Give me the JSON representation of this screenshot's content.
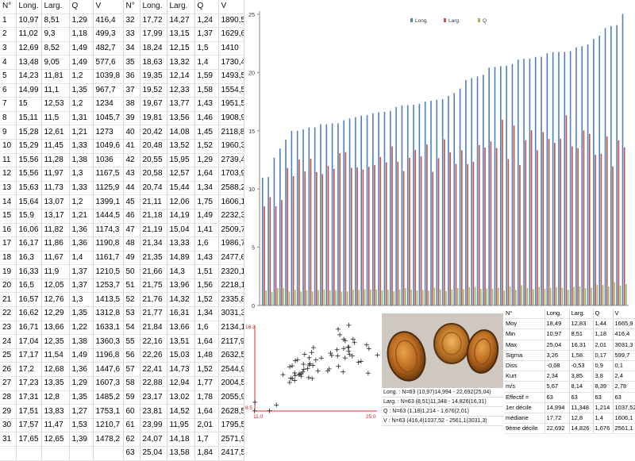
{
  "table": {
    "headers": [
      "N°",
      "Long.",
      "Larg.",
      "Q",
      "V",
      "N°",
      "Long.",
      "Larg.",
      "Q",
      "V"
    ],
    "rows": [
      [
        "1",
        "10,97",
        "8,51",
        "1,29",
        "416,4",
        "32",
        "17,72",
        "14,27",
        "1,24",
        "1890,5"
      ],
      [
        "2",
        "11,02",
        "9,3",
        "1,18",
        "499,3",
        "33",
        "17,99",
        "13,15",
        "1,37",
        "1629,6"
      ],
      [
        "3",
        "12,69",
        "8,52",
        "1,49",
        "482,7",
        "34",
        "18,24",
        "12,15",
        "1,5",
        "1410"
      ],
      [
        "4",
        "13,48",
        "9,05",
        "1,49",
        "577,6",
        "35",
        "18,63",
        "13,32",
        "1,4",
        "1730,4"
      ],
      [
        "5",
        "14,23",
        "11,81",
        "1,2",
        "1039,8",
        "36",
        "19,35",
        "12,14",
        "1,59",
        "1493,5"
      ],
      [
        "6",
        "14,99",
        "11,1",
        "1,35",
        "967,7",
        "37",
        "19,52",
        "12,33",
        "1,58",
        "1554,5"
      ],
      [
        "7",
        "15",
        "12,53",
        "1,2",
        "1234",
        "38",
        "19,67",
        "13,77",
        "1,43",
        "1951,5"
      ],
      [
        "8",
        "15,11",
        "11,5",
        "1,31",
        "1045,7",
        "39",
        "19,81",
        "13,56",
        "1,46",
        "1908,9"
      ],
      [
        "9",
        "15,28",
        "12,61",
        "1,21",
        "1273",
        "40",
        "20,42",
        "14,08",
        "1,45",
        "2118,8"
      ],
      [
        "10",
        "15,29",
        "11,45",
        "1,33",
        "1049,6",
        "41",
        "20,48",
        "13,52",
        "1,52",
        "1960,3"
      ],
      [
        "11",
        "15,56",
        "11,28",
        "1,38",
        "1036",
        "42",
        "20,55",
        "15,95",
        "1,29",
        "2739,4"
      ],
      [
        "12",
        "15,56",
        "11,97",
        "1,3",
        "1167,5",
        "43",
        "20,58",
        "12,57",
        "1,64",
        "1703,9"
      ],
      [
        "13",
        "15,63",
        "11,73",
        "1,33",
        "1125,9",
        "44",
        "20,74",
        "15,44",
        "1,34",
        "2588,2"
      ],
      [
        "14",
        "15,64",
        "13,07",
        "1,2",
        "1399,1",
        "45",
        "21,11",
        "12,06",
        "1,75",
        "1606,1"
      ],
      [
        "15",
        "15,9",
        "13,17",
        "1,21",
        "1444,5",
        "46",
        "21,18",
        "14,19",
        "1,49",
        "2232,3"
      ],
      [
        "16",
        "16,06",
        "11,82",
        "1,36",
        "1174,3",
        "47",
        "21,19",
        "15,04",
        "1,41",
        "2509,7"
      ],
      [
        "17",
        "16,17",
        "11,86",
        "1,36",
        "1190,8",
        "48",
        "21,34",
        "13,33",
        "1,6",
        "1986,7"
      ],
      [
        "18",
        "16,3",
        "11,67",
        "1,4",
        "1161,7",
        "49",
        "21,35",
        "14,89",
        "1,43",
        "2477,6"
      ],
      [
        "19",
        "16,33",
        "11,9",
        "1,37",
        "1210,5",
        "50",
        "21,66",
        "14,3",
        "1,51",
        "2320,1"
      ],
      [
        "20",
        "16,5",
        "12,05",
        "1,37",
        "1253,7",
        "51",
        "21,75",
        "13,96",
        "1,56",
        "2218,1"
      ],
      [
        "21",
        "16,57",
        "12,76",
        "1,3",
        "1413,5",
        "52",
        "21,76",
        "14,32",
        "1,52",
        "2335,8"
      ],
      [
        "22",
        "16,62",
        "12,29",
        "1,35",
        "1312,8",
        "53",
        "21,77",
        "16,31",
        "1,34",
        "3031,3"
      ],
      [
        "23",
        "16,71",
        "13,66",
        "1,22",
        "1633,1",
        "54",
        "21,84",
        "13,66",
        "1,6",
        "2134,1"
      ],
      [
        "24",
        "17,04",
        "12,35",
        "1,38",
        "1360,3",
        "55",
        "22,16",
        "13,51",
        "1,64",
        "2117,9"
      ],
      [
        "25",
        "17,17",
        "11,54",
        "1,49",
        "1196,8",
        "56",
        "22,26",
        "15,03",
        "1,48",
        "2632,5"
      ],
      [
        "26",
        "17,2",
        "12,68",
        "1,36",
        "1447,6",
        "57",
        "22,41",
        "14,73",
        "1,52",
        "2544,9"
      ],
      [
        "27",
        "17,23",
        "13,35",
        "1,29",
        "1607,3",
        "58",
        "22,88",
        "12,94",
        "1,77",
        "2004,5"
      ],
      [
        "28",
        "17,31",
        "12,8",
        "1,35",
        "1485,2",
        "59",
        "23,17",
        "13,02",
        "1,78",
        "2055,9"
      ],
      [
        "29",
        "17,51",
        "13,83",
        "1,27",
        "1753,1",
        "60",
        "23,81",
        "14,52",
        "1,64",
        "2628,5"
      ],
      [
        "30",
        "17,57",
        "11,47",
        "1,53",
        "1210,7",
        "61",
        "23,99",
        "11,95",
        "2,01",
        "1795,5"
      ],
      [
        "31",
        "17,65",
        "12,65",
        "1,39",
        "1478,2",
        "62",
        "24,07",
        "14,18",
        "1,7",
        "2571,9"
      ],
      [
        "",
        "",
        "",
        "",
        "",
        "63",
        "25,04",
        "13,58",
        "1,84",
        "2417,5"
      ]
    ]
  },
  "chart_data": [
    {
      "type": "bar",
      "legend": [
        "Long.",
        "Larg.",
        "Q"
      ],
      "legend_position": "top",
      "colors": [
        "#4f81bd",
        "#c0504d",
        "#9bbb59"
      ],
      "ylim": [
        0,
        25
      ],
      "yticks": [
        "0",
        "5",
        "10",
        "15",
        "20",
        "25"
      ],
      "grid": false,
      "series": [
        {
          "name": "Long.",
          "values": [
            10.97,
            11.02,
            12.69,
            13.48,
            14.23,
            14.99,
            15,
            15.11,
            15.28,
            15.29,
            15.56,
            15.56,
            15.63,
            15.64,
            15.9,
            16.06,
            16.17,
            16.3,
            16.33,
            16.5,
            16.57,
            16.62,
            16.71,
            17.04,
            17.17,
            17.2,
            17.23,
            17.31,
            17.51,
            17.57,
            17.65,
            17.72,
            17.99,
            18.24,
            18.63,
            19.35,
            19.52,
            19.67,
            19.81,
            20.42,
            20.48,
            20.55,
            20.58,
            20.74,
            21.11,
            21.18,
            21.19,
            21.34,
            21.35,
            21.66,
            21.75,
            21.76,
            21.77,
            21.84,
            22.16,
            22.26,
            22.41,
            22.88,
            23.17,
            23.81,
            23.99,
            24.07,
            25.04
          ]
        },
        {
          "name": "Larg.",
          "values": [
            8.51,
            9.3,
            8.52,
            9.05,
            11.81,
            11.1,
            12.53,
            11.5,
            12.61,
            11.45,
            11.28,
            11.97,
            11.73,
            13.07,
            13.17,
            11.82,
            11.86,
            11.67,
            11.9,
            12.05,
            12.76,
            12.29,
            13.66,
            12.35,
            11.54,
            12.68,
            13.35,
            12.8,
            13.83,
            11.47,
            12.65,
            14.27,
            13.15,
            12.15,
            13.32,
            12.14,
            12.33,
            13.77,
            13.56,
            14.08,
            13.52,
            15.95,
            12.57,
            15.44,
            12.06,
            14.19,
            15.04,
            13.33,
            14.89,
            14.3,
            13.96,
            14.32,
            16.31,
            13.66,
            13.51,
            15.03,
            14.73,
            12.94,
            13.02,
            14.52,
            11.95,
            14.18,
            13.58
          ]
        },
        {
          "name": "Q",
          "values": [
            1.29,
            1.18,
            1.49,
            1.49,
            1.2,
            1.35,
            1.2,
            1.31,
            1.21,
            1.33,
            1.38,
            1.3,
            1.33,
            1.2,
            1.21,
            1.36,
            1.36,
            1.4,
            1.37,
            1.37,
            1.3,
            1.35,
            1.22,
            1.38,
            1.49,
            1.36,
            1.29,
            1.35,
            1.27,
            1.53,
            1.39,
            1.24,
            1.37,
            1.5,
            1.4,
            1.59,
            1.58,
            1.43,
            1.46,
            1.45,
            1.52,
            1.29,
            1.64,
            1.34,
            1.75,
            1.49,
            1.41,
            1.6,
            1.43,
            1.51,
            1.56,
            1.52,
            1.34,
            1.6,
            1.64,
            1.48,
            1.52,
            1.77,
            1.78,
            1.64,
            2.01,
            1.7,
            1.84
          ]
        }
      ]
    },
    {
      "type": "scatter",
      "marker": "+",
      "xlim": [
        11.0,
        25.0
      ],
      "ylim": [
        8.5,
        16.3
      ],
      "x_min_label": "11.0",
      "x_max_label": "25.0",
      "y_min_label": "8.5",
      "y_max_label": "16.3",
      "x_source": "Long.",
      "y_source": "Larg."
    }
  ],
  "photo": {
    "alt_icon": "pollen-grains-photo",
    "info": [
      "Long. : N=63    (10,97)14,994 - 22,692(25,04)",
      "Larg. : N=63    (8,51)11,348 - 14,826(16,31)",
      "Q : N=63    (1,18)1,214 - 1,676(2,01)",
      "V : N=63    (416,4)1037,52 - 2561,1(3031,3)"
    ]
  },
  "stats": {
    "headers": [
      "N°",
      "Long.",
      "Larg.",
      "Q",
      "V"
    ],
    "rows": [
      [
        "Moy",
        "18,49",
        "12,83",
        "1,44",
        "1665,9"
      ],
      [
        "Min",
        "10,97",
        "8,51",
        "1,18",
        "416,4"
      ],
      [
        "Max",
        "25,04",
        "16,31",
        "2,01",
        "3031,3"
      ],
      [
        "Sigma",
        "3,26",
        "1,58",
        "0,17",
        "599,7"
      ],
      [
        "Diss",
        "-0,08",
        "-0,53",
        "0,9",
        "0,1"
      ],
      [
        "Kurt",
        "2,34",
        "3,85",
        "3,8",
        "2,4"
      ],
      [
        "m/s",
        "5,67",
        "8,14",
        "8,39",
        "2,78"
      ],
      [
        "Effectif =",
        "63",
        "63",
        "63",
        "63"
      ],
      [
        "1er décile",
        "14,994",
        "11,348",
        "1,214",
        "1037,52"
      ],
      [
        "médiane",
        "17,72",
        "12,8",
        "1,4",
        "1606,1"
      ],
      [
        "9ème décile",
        "22,692",
        "14,826",
        "1,676",
        "2561,1"
      ]
    ]
  }
}
